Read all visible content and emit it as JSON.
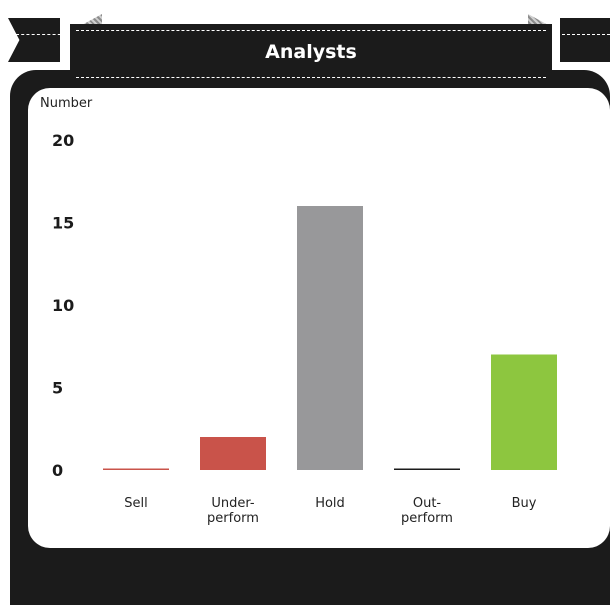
{
  "chart_data": {
    "type": "bar",
    "title": "Analysts",
    "ylabel": "Number",
    "ylim": [
      0,
      20
    ],
    "yticks": [
      "0",
      "5",
      "10",
      "15",
      "20"
    ],
    "categories": [
      "Sell",
      "Under-\nperform",
      "Hold",
      "Out-\nperform",
      "Buy"
    ],
    "values": [
      0,
      2,
      16,
      0,
      7
    ],
    "colors": [
      "#c9534a",
      "#c9534a",
      "#98989a",
      "#1b1b1b",
      "#8dc63f"
    ],
    "grid": false,
    "legend": "none"
  }
}
